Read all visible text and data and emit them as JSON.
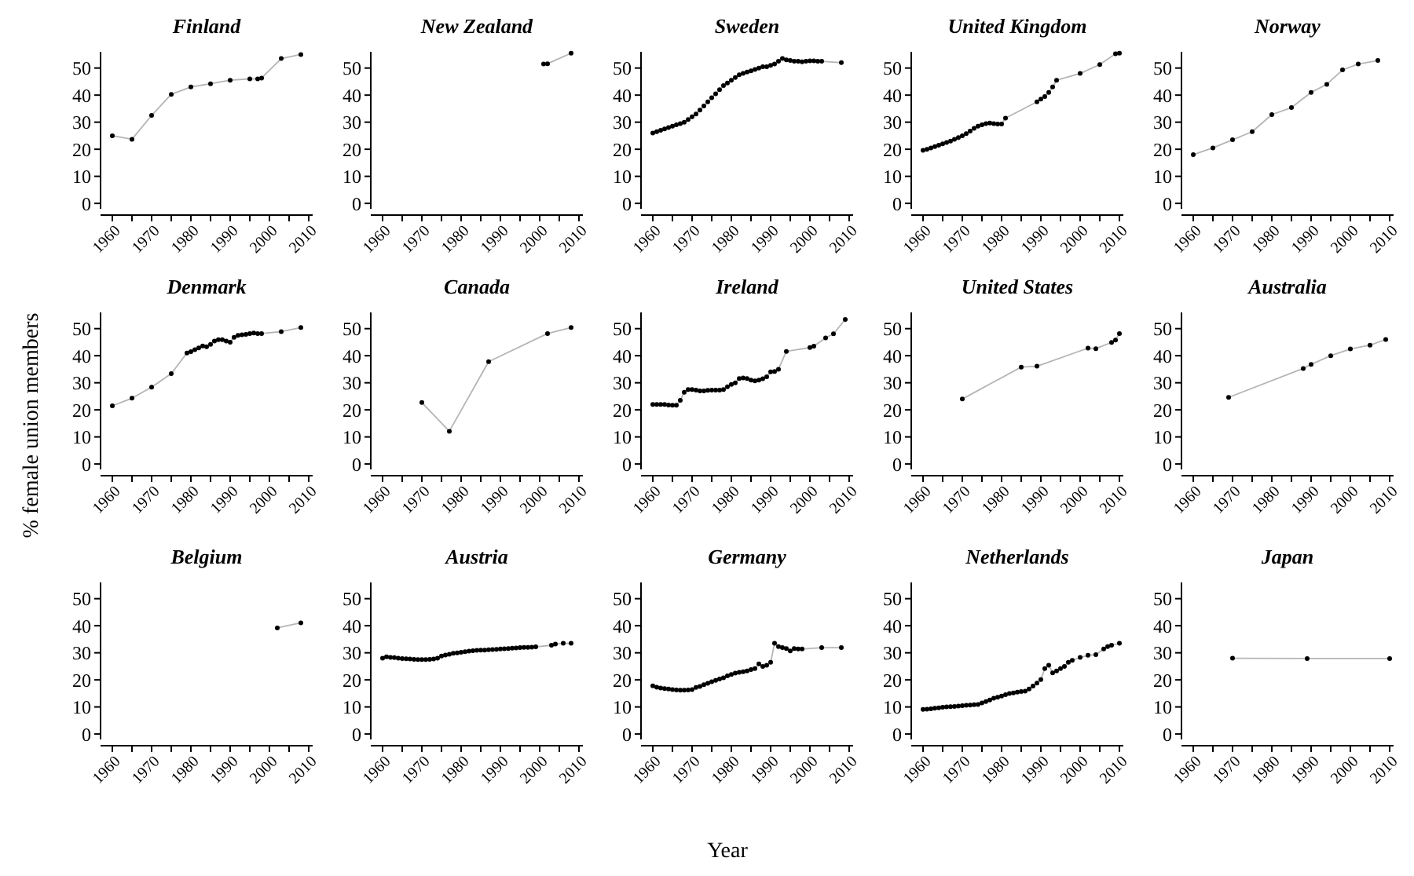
{
  "chart_data": [
    {
      "type": "line",
      "title": "Finland",
      "marker": "circle",
      "color": "#000000",
      "xlim": [
        1957,
        2011
      ],
      "ylim": [
        -2,
        56
      ],
      "yticks": [
        0,
        10,
        20,
        30,
        40,
        50
      ],
      "xticks": [
        1960,
        {
          "value": 1965,
          "label": null
        },
        1970,
        {
          "value": 1975,
          "label": null
        },
        1980,
        {
          "value": 1985,
          "label": null
        },
        1990,
        {
          "value": 1995,
          "label": null
        },
        2000,
        {
          "value": 2005,
          "label": null
        },
        2010
      ],
      "x": [
        1960,
        1965,
        1970,
        1975,
        1980,
        1985,
        1990,
        1995,
        1997,
        1998,
        2003,
        2008
      ],
      "values": [
        25,
        23.7,
        32.5,
        40.3,
        43,
        44.2,
        45.5,
        46,
        46,
        46.3,
        53.5,
        55
      ]
    },
    {
      "type": "line",
      "title": "New Zealand",
      "marker": "circle",
      "color": "#000000",
      "xlim": [
        1957,
        2011
      ],
      "ylim": [
        -2,
        56
      ],
      "yticks": [
        0,
        10,
        20,
        30,
        40,
        50
      ],
      "xticks": [
        1960,
        {
          "value": 1965,
          "label": null
        },
        1970,
        {
          "value": 1975,
          "label": null
        },
        1980,
        {
          "value": 1985,
          "label": null
        },
        1990,
        {
          "value": 1995,
          "label": null
        },
        2000,
        {
          "value": 2005,
          "label": null
        },
        2010
      ],
      "x": [
        2001,
        2002,
        2008
      ],
      "values": [
        51.5,
        51.6,
        55.5
      ]
    },
    {
      "type": "line",
      "title": "Sweden",
      "marker": "circle",
      "color": "#000000",
      "xlim": [
        1957,
        2011
      ],
      "ylim": [
        -2,
        56
      ],
      "yticks": [
        0,
        10,
        20,
        30,
        40,
        50
      ],
      "xticks": [
        1960,
        {
          "value": 1965,
          "label": null
        },
        1970,
        {
          "value": 1975,
          "label": null
        },
        1980,
        {
          "value": 1985,
          "label": null
        },
        1990,
        {
          "value": 1995,
          "label": null
        },
        2000,
        {
          "value": 2005,
          "label": null
        },
        2010
      ],
      "x": [
        1960,
        1961,
        1962,
        1963,
        1964,
        1965,
        1966,
        1967,
        1968,
        1969,
        1970,
        1971,
        1972,
        1973,
        1974,
        1975,
        1976,
        1977,
        1978,
        1979,
        1980,
        1981,
        1982,
        1983,
        1984,
        1985,
        1986,
        1987,
        1988,
        1989,
        1990,
        1991,
        1992,
        1993,
        1994,
        1995,
        1996,
        1997,
        1998,
        1999,
        2000,
        2001,
        2002,
        2003,
        2008
      ],
      "values": [
        26,
        26.5,
        27,
        27.5,
        28,
        28.5,
        29,
        29.5,
        30,
        31,
        32,
        33,
        34.5,
        36,
        37.5,
        39,
        40.5,
        42,
        43.5,
        44.5,
        45.5,
        46.5,
        47.5,
        48,
        48.5,
        49,
        49.5,
        50,
        50.5,
        50.5,
        51,
        51.5,
        52.5,
        53.5,
        53,
        52.8,
        52.5,
        52.5,
        52.3,
        52.5,
        52.7,
        52.7,
        52.5,
        52.5,
        52
      ]
    },
    {
      "type": "line",
      "title": "United Kingdom",
      "marker": "circle",
      "color": "#000000",
      "xlim": [
        1957,
        2011
      ],
      "ylim": [
        -2,
        56
      ],
      "yticks": [
        0,
        10,
        20,
        30,
        40,
        50
      ],
      "xticks": [
        1960,
        {
          "value": 1965,
          "label": null
        },
        1970,
        {
          "value": 1975,
          "label": null
        },
        1980,
        {
          "value": 1985,
          "label": null
        },
        1990,
        {
          "value": 1995,
          "label": null
        },
        2000,
        {
          "value": 2005,
          "label": null
        },
        2010
      ],
      "x": [
        1960,
        1961,
        1962,
        1963,
        1964,
        1965,
        1966,
        1967,
        1968,
        1969,
        1970,
        1971,
        1972,
        1973,
        1974,
        1975,
        1976,
        1977,
        1978,
        1979,
        1980,
        1981,
        1989,
        1990,
        1991,
        1992,
        1993,
        1994,
        2000,
        2005,
        2009,
        2010
      ],
      "values": [
        19.6,
        20,
        20.5,
        21,
        21.5,
        22,
        22.5,
        23,
        23.7,
        24.3,
        25,
        25.8,
        26.7,
        27.7,
        28.5,
        29,
        29.5,
        29.7,
        29.5,
        29.3,
        29.3,
        31.5,
        37.5,
        38.5,
        39.5,
        41,
        43,
        45.5,
        48,
        51.3,
        55.3,
        55.5
      ]
    },
    {
      "type": "line",
      "title": "Norway",
      "marker": "circle",
      "color": "#000000",
      "xlim": [
        1957,
        2011
      ],
      "ylim": [
        -2,
        56
      ],
      "yticks": [
        0,
        10,
        20,
        30,
        40,
        50
      ],
      "xticks": [
        1960,
        {
          "value": 1965,
          "label": null
        },
        1970,
        {
          "value": 1975,
          "label": null
        },
        1980,
        {
          "value": 1985,
          "label": null
        },
        1990,
        {
          "value": 1995,
          "label": null
        },
        2000,
        {
          "value": 2005,
          "label": null
        },
        2010
      ],
      "x": [
        1960,
        1965,
        1970,
        1975,
        1980,
        1985,
        1990,
        1994,
        1998,
        2002,
        2007
      ],
      "values": [
        18,
        20.5,
        23.5,
        26.5,
        32.8,
        35.4,
        41,
        44,
        49.3,
        51.5,
        52.8
      ]
    },
    {
      "type": "line",
      "title": "Denmark",
      "ylabel": "% female union members",
      "marker": "circle",
      "color": "#000000",
      "xlim": [
        1957,
        2011
      ],
      "ylim": [
        -2,
        56
      ],
      "yticks": [
        0,
        10,
        20,
        30,
        40,
        50
      ],
      "xticks": [
        1960,
        {
          "value": 1965,
          "label": null
        },
        1970,
        {
          "value": 1975,
          "label": null
        },
        1980,
        {
          "value": 1985,
          "label": null
        },
        1990,
        {
          "value": 1995,
          "label": null
        },
        2000,
        {
          "value": 2005,
          "label": null
        },
        2010
      ],
      "x": [
        1960,
        1965,
        1970,
        1975,
        1979,
        1980,
        1981,
        1982,
        1983,
        1984,
        1985,
        1986,
        1987,
        1988,
        1989,
        1990,
        1991,
        1992,
        1993,
        1994,
        1995,
        1996,
        1997,
        1998,
        2003,
        2008
      ],
      "values": [
        21.5,
        24.3,
        28.4,
        33.4,
        41,
        41.5,
        42.2,
        42.9,
        43.6,
        43.3,
        44.2,
        45.4,
        45.9,
        45.9,
        45.4,
        45,
        46.8,
        47.5,
        47.7,
        47.9,
        48.2,
        48.4,
        48.2,
        48.2,
        48.9,
        50.4
      ]
    },
    {
      "type": "line",
      "title": "Canada",
      "marker": "circle",
      "color": "#000000",
      "xlim": [
        1957,
        2011
      ],
      "ylim": [
        -2,
        56
      ],
      "yticks": [
        0,
        10,
        20,
        30,
        40,
        50
      ],
      "xticks": [
        1960,
        {
          "value": 1965,
          "label": null
        },
        1970,
        {
          "value": 1975,
          "label": null
        },
        1980,
        {
          "value": 1985,
          "label": null
        },
        1990,
        {
          "value": 1995,
          "label": null
        },
        2000,
        {
          "value": 2005,
          "label": null
        },
        2010
      ],
      "x": [
        1970,
        1977,
        1987,
        2002,
        2008
      ],
      "values": [
        22.7,
        12.1,
        37.8,
        48.2,
        50.4
      ]
    },
    {
      "type": "line",
      "title": "Ireland",
      "marker": "circle",
      "color": "#000000",
      "xlim": [
        1957,
        2011
      ],
      "ylim": [
        -2,
        56
      ],
      "yticks": [
        0,
        10,
        20,
        30,
        40,
        50
      ],
      "xticks": [
        1960,
        {
          "value": 1965,
          "label": null
        },
        1970,
        {
          "value": 1975,
          "label": null
        },
        1980,
        {
          "value": 1985,
          "label": null
        },
        1990,
        {
          "value": 1995,
          "label": null
        },
        2000,
        {
          "value": 2005,
          "label": null
        },
        2010
      ],
      "x": [
        1960,
        1961,
        1962,
        1963,
        1964,
        1965,
        1966,
        1967,
        1968,
        1969,
        1970,
        1971,
        1972,
        1973,
        1974,
        1975,
        1976,
        1977,
        1978,
        1979,
        1980,
        1981,
        1982,
        1983,
        1984,
        1985,
        1986,
        1987,
        1988,
        1989,
        1990,
        1991,
        1992,
        1994,
        2000,
        2001,
        2004,
        2006,
        2009
      ],
      "values": [
        22,
        22,
        22,
        22,
        21.8,
        21.7,
        21.7,
        23.5,
        26.5,
        27.5,
        27.5,
        27.3,
        27,
        27,
        27.2,
        27.3,
        27.3,
        27.3,
        27.5,
        28.5,
        29.4,
        30,
        31.6,
        31.8,
        31.6,
        31,
        30.7,
        31,
        31.5,
        32.2,
        34,
        34.2,
        35,
        41.6,
        43,
        43.5,
        46.6,
        48.1,
        53.4
      ]
    },
    {
      "type": "line",
      "title": "United States",
      "marker": "circle",
      "color": "#000000",
      "xlim": [
        1957,
        2011
      ],
      "ylim": [
        -2,
        56
      ],
      "yticks": [
        0,
        10,
        20,
        30,
        40,
        50
      ],
      "xticks": [
        1960,
        {
          "value": 1965,
          "label": null
        },
        1970,
        {
          "value": 1975,
          "label": null
        },
        1980,
        {
          "value": 1985,
          "label": null
        },
        1990,
        {
          "value": 1995,
          "label": null
        },
        2000,
        {
          "value": 2005,
          "label": null
        },
        2010
      ],
      "x": [
        1970,
        1985,
        1989,
        2002,
        2004,
        2008,
        2009,
        2010
      ],
      "values": [
        24,
        35.8,
        36.1,
        42.8,
        42.6,
        44.9,
        45.8,
        48.2
      ]
    },
    {
      "type": "line",
      "title": "Australia",
      "marker": "circle",
      "color": "#000000",
      "xlim": [
        1957,
        2011
      ],
      "ylim": [
        -2,
        56
      ],
      "yticks": [
        0,
        10,
        20,
        30,
        40,
        50
      ],
      "xticks": [
        1960,
        {
          "value": 1965,
          "label": null
        },
        1970,
        {
          "value": 1975,
          "label": null
        },
        1980,
        {
          "value": 1985,
          "label": null
        },
        1990,
        {
          "value": 1995,
          "label": null
        },
        2000,
        {
          "value": 2005,
          "label": null
        },
        2010
      ],
      "x": [
        1969,
        1988,
        1990,
        1995,
        2000,
        2005,
        2009
      ],
      "values": [
        24.6,
        35.3,
        36.8,
        40,
        42.5,
        43.9,
        46
      ]
    },
    {
      "type": "line",
      "title": "Belgium",
      "marker": "circle",
      "color": "#000000",
      "xlim": [
        1957,
        2011
      ],
      "ylim": [
        -2,
        56
      ],
      "yticks": [
        0,
        10,
        20,
        30,
        40,
        50
      ],
      "xticks": [
        1960,
        {
          "value": 1965,
          "label": null
        },
        1970,
        {
          "value": 1975,
          "label": null
        },
        1980,
        {
          "value": 1985,
          "label": null
        },
        1990,
        {
          "value": 1995,
          "label": null
        },
        2000,
        {
          "value": 2005,
          "label": null
        },
        2010
      ],
      "x": [
        2002,
        2008
      ],
      "values": [
        39.2,
        41.1
      ]
    },
    {
      "type": "line",
      "title": "Austria",
      "marker": "circle",
      "color": "#000000",
      "xlim": [
        1957,
        2011
      ],
      "ylim": [
        -2,
        56
      ],
      "yticks": [
        0,
        10,
        20,
        30,
        40,
        50
      ],
      "xticks": [
        1960,
        {
          "value": 1965,
          "label": null
        },
        1970,
        {
          "value": 1975,
          "label": null
        },
        1980,
        {
          "value": 1985,
          "label": null
        },
        1990,
        {
          "value": 1995,
          "label": null
        },
        2000,
        {
          "value": 2005,
          "label": null
        },
        2010
      ],
      "x": [
        1960,
        1961,
        1962,
        1963,
        1964,
        1965,
        1966,
        1967,
        1968,
        1969,
        1970,
        1971,
        1972,
        1973,
        1974,
        1975,
        1976,
        1977,
        1978,
        1979,
        1980,
        1981,
        1982,
        1983,
        1984,
        1985,
        1986,
        1987,
        1988,
        1989,
        1990,
        1991,
        1992,
        1993,
        1994,
        1995,
        1996,
        1997,
        1998,
        1999,
        2003,
        2004,
        2006,
        2008
      ],
      "values": [
        28,
        28.5,
        28.3,
        28.2,
        28,
        27.9,
        27.8,
        27.7,
        27.6,
        27.5,
        27.5,
        27.5,
        27.6,
        27.7,
        28,
        28.8,
        29.2,
        29.5,
        29.8,
        30,
        30.2,
        30.4,
        30.6,
        30.8,
        30.9,
        31,
        31,
        31.1,
        31.2,
        31.3,
        31.4,
        31.5,
        31.6,
        31.7,
        31.8,
        31.9,
        32,
        32,
        32.1,
        32.2,
        32.8,
        33.2,
        33.5,
        33.5
      ]
    },
    {
      "type": "line",
      "title": "Germany",
      "xlabel": "Year",
      "marker": "circle",
      "color": "#000000",
      "xlim": [
        1957,
        2011
      ],
      "ylim": [
        -2,
        56
      ],
      "yticks": [
        0,
        10,
        20,
        30,
        40,
        50
      ],
      "xticks": [
        1960,
        {
          "value": 1965,
          "label": null
        },
        1970,
        {
          "value": 1975,
          "label": null
        },
        1980,
        {
          "value": 1985,
          "label": null
        },
        1990,
        {
          "value": 1995,
          "label": null
        },
        2000,
        {
          "value": 2005,
          "label": null
        },
        2010
      ],
      "x": [
        1960,
        1961,
        1962,
        1963,
        1964,
        1965,
        1966,
        1967,
        1968,
        1969,
        1970,
        1971,
        1972,
        1973,
        1974,
        1975,
        1976,
        1977,
        1978,
        1979,
        1980,
        1981,
        1982,
        1983,
        1984,
        1985,
        1986,
        1987,
        1988,
        1989,
        1990,
        1991,
        1992,
        1993,
        1994,
        1995,
        1996,
        1997,
        1998,
        2003,
        2008
      ],
      "values": [
        17.8,
        17.3,
        17,
        16.8,
        16.6,
        16.4,
        16.3,
        16.2,
        16.2,
        16.3,
        16.4,
        17.2,
        17.6,
        18.2,
        18.7,
        19.3,
        19.8,
        20.3,
        20.8,
        21.5,
        22,
        22.5,
        22.8,
        23,
        23.3,
        23.8,
        24.2,
        25.9,
        25,
        25.4,
        26.5,
        33.5,
        32.3,
        31.9,
        31.6,
        30.7,
        31.6,
        31.4,
        31.4,
        31.9,
        31.9
      ]
    },
    {
      "type": "line",
      "title": "Netherlands",
      "marker": "circle",
      "color": "#000000",
      "xlim": [
        1957,
        2011
      ],
      "ylim": [
        -2,
        56
      ],
      "yticks": [
        0,
        10,
        20,
        30,
        40,
        50
      ],
      "xticks": [
        1960,
        {
          "value": 1965,
          "label": null
        },
        1970,
        {
          "value": 1975,
          "label": null
        },
        1980,
        {
          "value": 1985,
          "label": null
        },
        1990,
        {
          "value": 1995,
          "label": null
        },
        2000,
        {
          "value": 2005,
          "label": null
        },
        2010
      ],
      "x": [
        1960,
        1961,
        1962,
        1963,
        1964,
        1965,
        1966,
        1967,
        1968,
        1969,
        1970,
        1971,
        1972,
        1973,
        1974,
        1975,
        1976,
        1977,
        1978,
        1979,
        1980,
        1981,
        1982,
        1983,
        1984,
        1985,
        1986,
        1987,
        1988,
        1989,
        1990,
        1991,
        1992,
        1993,
        1994,
        1995,
        1996,
        1997,
        1998,
        2000,
        2002,
        2004,
        2006,
        2007,
        2008,
        2010
      ],
      "values": [
        9.1,
        9.2,
        9.3,
        9.5,
        9.7,
        9.9,
        10,
        10.1,
        10.2,
        10.3,
        10.5,
        10.6,
        10.7,
        10.8,
        10.9,
        11.5,
        12,
        12.6,
        13.2,
        13.6,
        14,
        14.5,
        15,
        15.2,
        15.5,
        15.7,
        15.8,
        16.6,
        17.7,
        18.8,
        20.1,
        24.2,
        25.4,
        22.6,
        23.3,
        24.2,
        25,
        26.5,
        27.2,
        28.3,
        29.1,
        29.3,
        31.4,
        32.3,
        32.8,
        33.5
      ]
    },
    {
      "type": "line",
      "title": "Japan",
      "marker": "circle",
      "color": "#000000",
      "xlim": [
        1957,
        2011
      ],
      "ylim": [
        -2,
        56
      ],
      "yticks": [
        0,
        10,
        20,
        30,
        40,
        50
      ],
      "xticks": [
        1960,
        {
          "value": 1965,
          "label": null
        },
        1970,
        {
          "value": 1975,
          "label": null
        },
        1980,
        {
          "value": 1985,
          "label": null
        },
        1990,
        {
          "value": 1995,
          "label": null
        },
        2000,
        {
          "value": 2005,
          "label": null
        },
        2010
      ],
      "x": [
        1970,
        1989,
        2010
      ],
      "values": [
        28,
        27.9,
        27.9
      ]
    }
  ]
}
